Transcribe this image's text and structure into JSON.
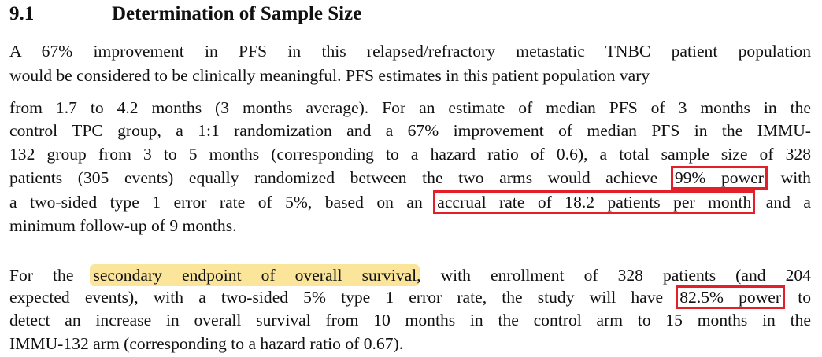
{
  "header": {
    "number": "9.1",
    "title": "Determination of Sample Size"
  },
  "paragraphs": [
    {
      "lines": [
        [
          "A 67% improvement in PFS in this relapsed/refractory metastatic TNBC patient population"
        ],
        [
          "would be considered to be clinically meaningful. PFS estimates in this patient population vary"
        ]
      ]
    },
    {
      "lines": [
        [
          "from 1.7 to 4.2 months (3 months average). For an estimate of median PFS of 3 months in the"
        ],
        [
          "control TPC group, a 1:1 randomization and a 67% improvement of median PFS in the IMMU-"
        ],
        [
          "132 group from 3 to 5 months (corresponding to a hazard ratio of 0.6), a total sample size of 328"
        ],
        [
          "patients (305 events) equally randomized between the two arms would achieve",
          {
            "text": "99% power",
            "style": "boxed"
          },
          "with"
        ],
        [
          "a two-sided type 1 error rate of 5%, based on an",
          {
            "text": "accrual rate of 18.2 patients per month",
            "style": "boxed"
          },
          "and a"
        ],
        [
          "minimum follow-up of 9 months."
        ]
      ]
    },
    {
      "lines": [
        [
          "For the",
          {
            "text": "secondary endpoint of overall survival",
            "style": "highlight"
          },
          ", with enrollment of 328 patients (and 204"
        ],
        [
          "expected events), with a two-sided 5% type 1 error rate, the study will have",
          {
            "text": "82.5% power",
            "style": "boxed"
          },
          "to"
        ],
        [
          "detect an increase in overall survival from 10 months in the control arm to 15 months in the"
        ],
        [
          "IMMU-132 arm (corresponding to a hazard ratio of 0.67)."
        ]
      ]
    }
  ]
}
